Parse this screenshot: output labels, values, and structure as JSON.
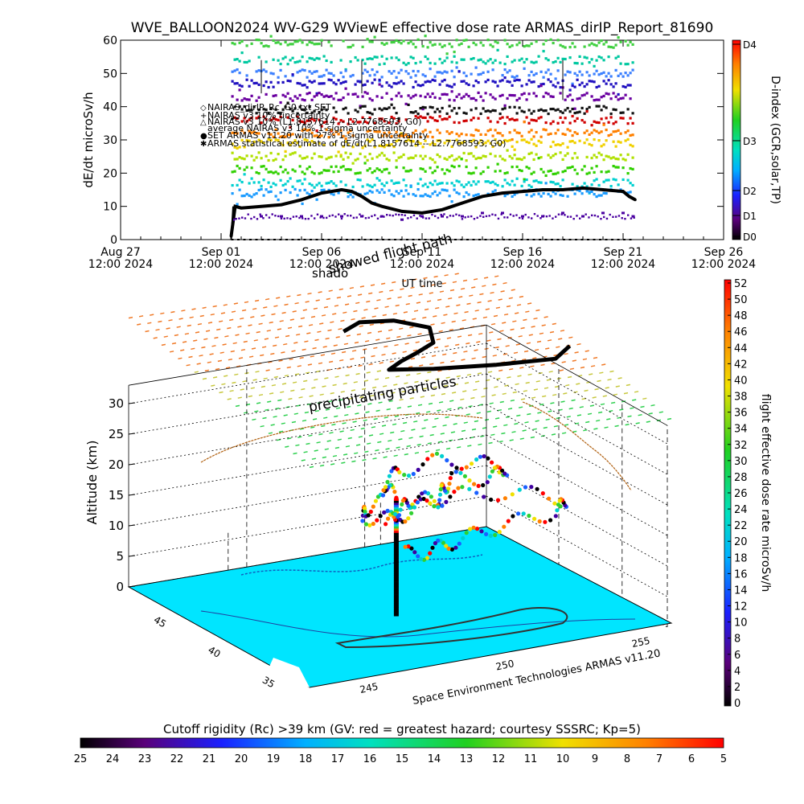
{
  "chart_data": [
    {
      "type": "scatter",
      "title": "WVE_BALLOON2024 WV-G29 WViewE effective dose rate ARMAS_dirIP_Report_81690",
      "ylabel": "dE/dt microSv/h",
      "xlabel": "UT time",
      "ylim": [
        0,
        60
      ],
      "yticks": [
        "0",
        "10",
        "20",
        "30",
        "40",
        "50",
        "60"
      ],
      "xticks": [
        {
          "l1": "Aug 27",
          "l2": "12:00 2024"
        },
        {
          "l1": "Sep 01",
          "l2": "12:00 2024"
        },
        {
          "l1": "Sep 06",
          "l2": "12:00 2024"
        },
        {
          "l1": "Sep 11",
          "l2": "12:00 2024"
        },
        {
          "l1": "Sep 16",
          "l2": "12:00 2024"
        },
        {
          "l1": "Sep 21",
          "l2": "12:00 2024"
        },
        {
          "l1": "Sep 26",
          "l2": "12:00 2024"
        }
      ],
      "legend": [
        "NAIRAS_dirIP_Rc_G0.txt SET",
        "NAIRAS v3 10% uncertainty",
        "NAIRAS v3 10% (L1.8157614 -- L2.7768593, G0)",
        "average NAIRAS v3 10% 1-sigma uncertainty",
        "SET ARMAS v11.20 with 27% 1-sigma uncertainty",
        "ARMAS statistical estimate of dE/dt(L1.8157614 -- L2.7768593, G0)"
      ],
      "series": [
        {
          "name": "ARMAS statistical estimate of dE/dt(L1.8157614 -- L2.7768593, G0)",
          "color": "#000000",
          "x": [
            5.5,
            5.7,
            6,
            7,
            8,
            9,
            10,
            11,
            11.5,
            12,
            12.5,
            13,
            14,
            15,
            16,
            16.5,
            17,
            18,
            19,
            20,
            21,
            22,
            23,
            24,
            25,
            25.3,
            25.6
          ],
          "y": [
            1,
            10,
            9.5,
            10,
            10.5,
            12,
            14,
            15,
            14.5,
            13,
            11,
            10,
            8.5,
            8,
            9,
            10,
            11,
            13,
            14,
            14.5,
            15,
            15,
            15.5,
            15,
            14.5,
            13,
            12
          ]
        },
        {
          "color": "#4a00a0",
          "x": [
            5.6,
            7,
            8,
            9,
            10,
            11,
            12,
            13,
            14,
            15,
            16,
            17,
            18,
            19,
            20,
            21,
            22,
            23,
            24,
            25,
            25.5
          ],
          "y": [
            6,
            7,
            7,
            7,
            7,
            7,
            7,
            7,
            6,
            7,
            7,
            7,
            8,
            8,
            7,
            7,
            8,
            7,
            8,
            8,
            7
          ]
        }
      ],
      "bands": [
        {
          "y": 59,
          "color": "#40d040"
        },
        {
          "y": 54,
          "color": "#00c8a0"
        },
        {
          "y": 50,
          "color": "#3c80ff"
        },
        {
          "y": 47,
          "color": "#2010c0"
        },
        {
          "y": 43,
          "color": "#6a00a0"
        },
        {
          "y": 39,
          "color": "#111111"
        },
        {
          "y": 36,
          "color": "#d00000"
        },
        {
          "y": 32,
          "color": "#ff8000"
        },
        {
          "y": 29,
          "color": "#f0d000"
        },
        {
          "y": 25,
          "color": "#b0e000"
        },
        {
          "y": 21,
          "color": "#30d000"
        },
        {
          "y": 17,
          "color": "#00d0d0"
        },
        {
          "y": 14,
          "color": "#1a9bff"
        }
      ],
      "right_colorbar": {
        "label": "D-index (GCR,solar,TP)",
        "ticks": [
          "D4",
          "D3",
          "D2",
          "D1",
          "D0"
        ]
      }
    },
    {
      "type": "scatter3d",
      "title": "",
      "zlabel": "Altitude (km)",
      "zticks": [
        "0",
        "5",
        "10",
        "15",
        "20",
        "25",
        "30"
      ],
      "lat_ticks": [
        "45",
        "40",
        "35"
      ],
      "lon_ticks": [
        "245",
        "250",
        "255"
      ],
      "annotations": [
        "showed flight path",
        "shado",
        "precipitating particles",
        "UT time"
      ],
      "credit": "Space Environment Technologies ARMAS v11.20",
      "right_colorbar": {
        "label": "flight effective dose rate microSv/h",
        "min": 0,
        "max": 52,
        "ticks": [
          "52",
          "50",
          "48",
          "46",
          "44",
          "42",
          "40",
          "38",
          "36",
          "34",
          "32",
          "30",
          "28",
          "26",
          "24",
          "22",
          "20",
          "18",
          "16",
          "14",
          "12",
          "10",
          "8",
          "6",
          "4",
          "2",
          "0"
        ]
      },
      "bottom_colorbar": {
        "title": "Cutoff rigidity (Rc) >39 km (GV: red = greatest hazard; courtesy SSSRC; Kp=5)",
        "ticks": [
          "25",
          "24",
          "23",
          "22",
          "21",
          "20",
          "19",
          "18",
          "17",
          "16",
          "15",
          "14",
          "13",
          "12",
          "11",
          "10",
          "9",
          "8",
          "7",
          "6",
          "5"
        ]
      }
    }
  ]
}
